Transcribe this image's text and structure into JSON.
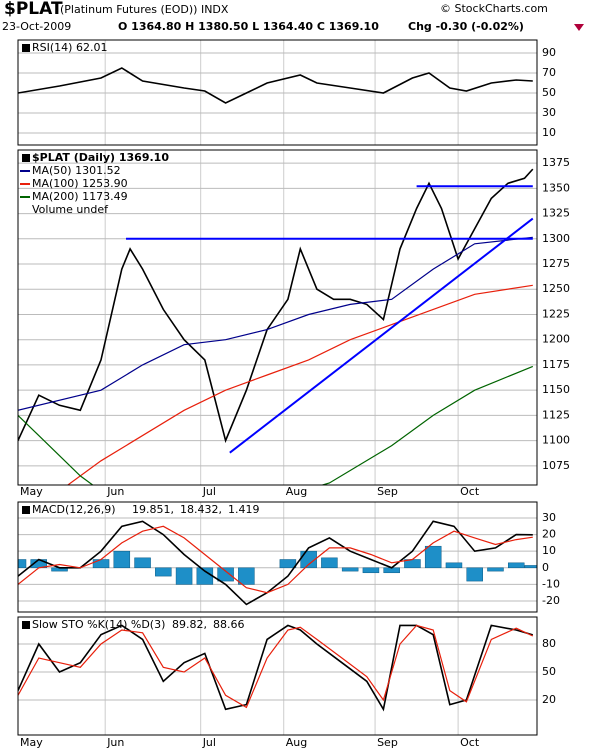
{
  "header": {
    "symbol": "$PLAT",
    "name": "(Platinum Futures (EOD)) INDX",
    "date": "23-Oct-2009",
    "quote": "O 1364.80 H 1380.50 L 1364.40 C 1369.10",
    "chg": "Chg -0.30 (-0.02%)",
    "source": "© StockCharts.com"
  },
  "xaxis": {
    "xlim": [
      0,
      125
    ],
    "xticks": [
      {
        "value": 0,
        "label": "May"
      },
      {
        "value": 21,
        "label": "Jun"
      },
      {
        "value": 44,
        "label": "Jul"
      },
      {
        "value": 64,
        "label": "Aug"
      },
      {
        "value": 86,
        "label": "Sep"
      },
      {
        "value": 106,
        "label": "Oct"
      }
    ]
  },
  "chart_data": [
    {
      "type": "line",
      "title": "RSI(14) 62.01",
      "ylim": [
        -2,
        103
      ],
      "yticks": [
        10,
        30,
        50,
        70,
        90
      ],
      "grid": true,
      "series": [
        {
          "name": null,
          "color": "#000000",
          "x": [
            0,
            10,
            20,
            25,
            30,
            40,
            45,
            50,
            55,
            60,
            68,
            72,
            80,
            88,
            95,
            99,
            104,
            108,
            114,
            120,
            124
          ],
          "values": [
            50,
            57,
            65,
            75,
            62,
            55,
            52,
            40,
            50,
            60,
            68,
            60,
            55,
            50,
            65,
            70,
            55,
            52,
            60,
            63,
            62.01
          ]
        }
      ]
    },
    {
      "type": "line",
      "title": "$PLAT (Daily) 1369.10",
      "ylim": [
        1056,
        1388
      ],
      "yticks": [
        1075,
        1100,
        1125,
        1150,
        1175,
        1200,
        1225,
        1250,
        1275,
        1300,
        1325,
        1350,
        1375
      ],
      "grid": true,
      "note": "Volume undef",
      "series": [
        {
          "name": null,
          "color": "#000000",
          "x": [
            0,
            5,
            10,
            15,
            20,
            25,
            27,
            30,
            35,
            40,
            45,
            50,
            55,
            60,
            65,
            68,
            72,
            76,
            80,
            84,
            88,
            92,
            96,
            99,
            102,
            106,
            110,
            114,
            118,
            122,
            124
          ],
          "values": [
            1100,
            1145,
            1135,
            1130,
            1180,
            1270,
            1290,
            1270,
            1230,
            1200,
            1180,
            1100,
            1150,
            1210,
            1240,
            1290,
            1250,
            1240,
            1240,
            1235,
            1220,
            1290,
            1330,
            1355,
            1330,
            1280,
            1310,
            1340,
            1355,
            1360,
            1369.1
          ]
        },
        {
          "name": "MA(50) 1301.52",
          "color": "#00008b",
          "x": [
            0,
            20,
            30,
            40,
            50,
            60,
            70,
            80,
            90,
            100,
            110,
            124
          ],
          "values": [
            1130,
            1150,
            1175,
            1195,
            1200,
            1210,
            1225,
            1235,
            1240,
            1270,
            1295,
            1301.52
          ]
        },
        {
          "name": "MA(100) 1253.90",
          "color": "#e8200c",
          "x": [
            10,
            20,
            40,
            50,
            60,
            70,
            80,
            90,
            100,
            110,
            124
          ],
          "values": [
            1050,
            1080,
            1130,
            1150,
            1165,
            1180,
            1200,
            1215,
            1230,
            1245,
            1253.9
          ]
        },
        {
          "name": "MA(200) 1173.49",
          "color": "#006400",
          "x": [
            0,
            5,
            10,
            15,
            20,
            40,
            60,
            75,
            90,
            100,
            110,
            124
          ],
          "values": [
            1125,
            1105,
            1085,
            1065,
            1050,
            1020,
            1040,
            1058,
            1095,
            1125,
            1150,
            1173.49
          ]
        }
      ],
      "lines": [
        {
          "color": "#0000ff",
          "x": [
            96,
            124
          ],
          "values": [
            1352,
            1352
          ]
        },
        {
          "color": "#0000ff",
          "x": [
            26,
            124
          ],
          "values": [
            1300,
            1300
          ]
        },
        {
          "color": "#0000ff",
          "x": [
            51,
            124
          ],
          "values": [
            1088,
            1320
          ]
        }
      ]
    },
    {
      "type": "line",
      "title": "MACD(12,26,9)",
      "ylim": [
        -26.6,
        39.6
      ],
      "yticks": [
        -20,
        -10,
        0,
        10,
        20,
        30
      ],
      "grid": true,
      "series": [
        {
          "name": "19.851,",
          "color": "#000000",
          "x": [
            0,
            5,
            10,
            15,
            20,
            25,
            30,
            35,
            40,
            45,
            50,
            55,
            60,
            65,
            70,
            75,
            80,
            85,
            90,
            95,
            100,
            105,
            110,
            115,
            120,
            124
          ],
          "values": [
            -5,
            5,
            0,
            0,
            10,
            25,
            28,
            20,
            8,
            -2,
            -10,
            -22,
            -15,
            -5,
            12,
            18,
            10,
            5,
            0,
            10,
            28,
            25,
            10,
            12,
            20,
            19.851
          ]
        },
        {
          "name": "18.432,",
          "color": "#e8200c",
          "x": [
            0,
            5,
            10,
            15,
            20,
            25,
            30,
            35,
            40,
            45,
            50,
            55,
            60,
            65,
            70,
            75,
            80,
            85,
            90,
            95,
            100,
            105,
            110,
            115,
            120,
            124
          ],
          "values": [
            -10,
            0,
            2,
            0,
            5,
            15,
            22,
            25,
            18,
            8,
            -2,
            -12,
            -15,
            -10,
            2,
            12,
            12,
            8,
            3,
            5,
            15,
            22,
            18,
            14,
            17,
            18.432
          ]
        },
        {
          "name": "1.419",
          "color": "#1e8fc8",
          "style": "bar",
          "x": [
            0,
            5,
            10,
            15,
            20,
            25,
            30,
            35,
            40,
            45,
            50,
            55,
            60,
            65,
            70,
            75,
            80,
            85,
            90,
            95,
            100,
            105,
            110,
            115,
            120,
            124
          ],
          "values": [
            5,
            5,
            -2,
            0,
            5,
            10,
            6,
            -5,
            -10,
            -10,
            -8,
            -10,
            0,
            5,
            10,
            6,
            -2,
            -3,
            -3,
            5,
            13,
            3,
            -8,
            -2,
            3,
            1.419
          ]
        }
      ]
    },
    {
      "type": "line",
      "title": "Slow STO %K(14) %D(3)",
      "ylim": [
        -17.6,
        109
      ],
      "yticks": [
        20,
        50,
        80
      ],
      "grid": true,
      "series": [
        {
          "name": "89.82,",
          "color": "#000000",
          "x": [
            0,
            5,
            10,
            15,
            20,
            25,
            30,
            35,
            40,
            45,
            50,
            55,
            60,
            65,
            68,
            72,
            78,
            84,
            88,
            92,
            96,
            100,
            104,
            108,
            114,
            120,
            124
          ],
          "values": [
            30,
            80,
            50,
            60,
            90,
            100,
            85,
            40,
            60,
            70,
            10,
            15,
            85,
            100,
            95,
            80,
            60,
            40,
            10,
            100,
            100,
            90,
            15,
            20,
            100,
            95,
            89.82
          ]
        },
        {
          "name": "88.66",
          "color": "#e8200c",
          "x": [
            0,
            5,
            10,
            15,
            20,
            25,
            30,
            35,
            40,
            45,
            50,
            55,
            60,
            65,
            68,
            72,
            78,
            84,
            88,
            92,
            96,
            100,
            104,
            108,
            114,
            120,
            124
          ],
          "values": [
            25,
            65,
            60,
            55,
            80,
            95,
            92,
            55,
            50,
            65,
            25,
            12,
            65,
            95,
            98,
            85,
            65,
            45,
            20,
            80,
            100,
            95,
            30,
            18,
            85,
            97,
            88.66
          ]
        }
      ]
    }
  ]
}
